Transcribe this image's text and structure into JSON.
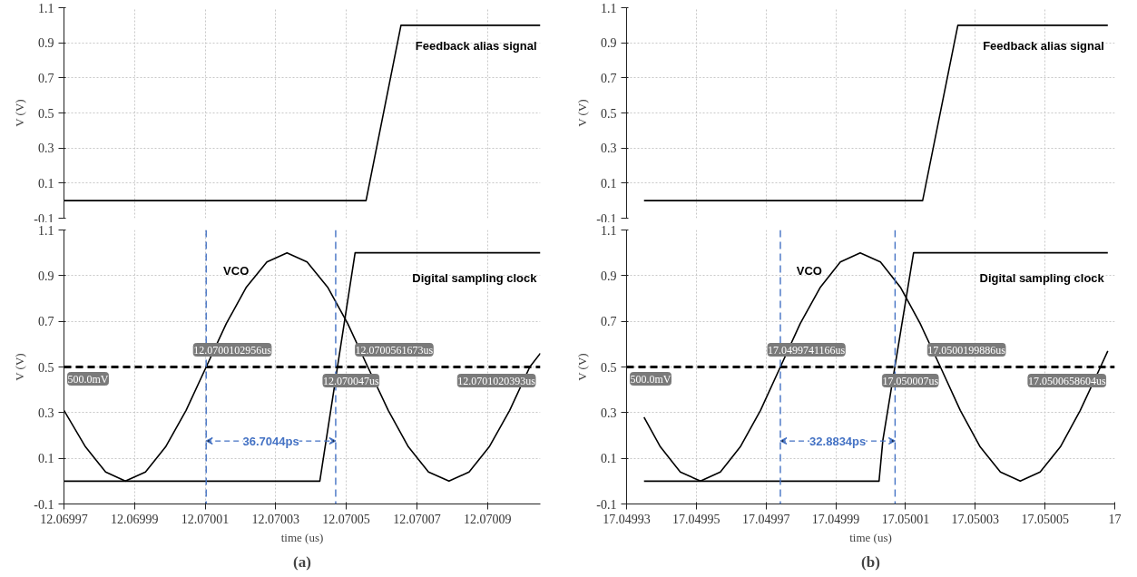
{
  "chart_data": [
    {
      "type": "line",
      "ylabel": "V (V)",
      "xlim": [
        12.06997,
        12.070105
      ],
      "ylim": [
        -0.1,
        1.1
      ],
      "yticks": [
        -0.1,
        0.1,
        0.3,
        0.5,
        0.7,
        0.9,
        1.1
      ],
      "xticks": [
        12.06997,
        12.06999,
        12.07001,
        12.07003,
        12.07005,
        12.07007,
        12.07009
      ],
      "tick_labels": "y",
      "grid": true,
      "marker": "none",
      "line_style": "solid",
      "series": [
        {
          "name": "Feedback alias signal",
          "color": "#000000",
          "x": [
            12.06997,
            12.0700556,
            12.0700655,
            12.070105
          ],
          "values": [
            0,
            0,
            1.0,
            1.0
          ]
        }
      ]
    },
    {
      "type": "line",
      "ylabel": "V (V)",
      "xlim": [
        17.04993,
        17.05007
      ],
      "ylim": [
        -0.1,
        1.1
      ],
      "yticks": [
        -0.1,
        0.1,
        0.3,
        0.5,
        0.7,
        0.9,
        1.1
      ],
      "xticks": [
        17.04993,
        17.04995,
        17.04997,
        17.04999,
        17.05001,
        17.05003,
        17.05005
      ],
      "tick_labels": "y",
      "grid": true,
      "marker": "none",
      "line_style": "solid",
      "series": [
        {
          "name": "Feedback alias signal",
          "color": "#000000",
          "x": [
            17.049935,
            17.0500149,
            17.050025,
            17.050068
          ],
          "values": [
            0,
            0,
            1.0,
            1.0
          ]
        }
      ]
    },
    {
      "type": "line",
      "xlabel": "time (us)",
      "ylabel": "V (V)",
      "xlim": [
        12.06997,
        12.070105
      ],
      "ylim": [
        -0.1,
        1.1
      ],
      "yticks": [
        -0.1,
        0.1,
        0.3,
        0.5,
        0.7,
        0.9,
        1.1
      ],
      "xticks": [
        12.06997,
        12.06999,
        12.07001,
        12.07003,
        12.07005,
        12.07007,
        12.07009
      ],
      "grid": true,
      "marker": "none",
      "line_style": "solid",
      "series": [
        {
          "name": "VCO",
          "color": "#000000",
          "x": [
            12.06997,
            12.0699761,
            12.0699818,
            12.0699874,
            12.0699931,
            12.0699988,
            12.0700046,
            12.0700103,
            12.070016,
            12.0700217,
            12.0700275,
            12.0700332,
            12.0700389,
            12.0700447,
            12.0700504,
            12.0700561,
            12.0700619,
            12.0700676,
            12.0700733,
            12.0700791,
            12.0700848,
            12.0700905,
            12.0700963,
            12.070102,
            12.070105
          ],
          "values": [
            0.31,
            0.15,
            0.04,
            0,
            0.04,
            0.15,
            0.31,
            0.5,
            0.69,
            0.85,
            0.96,
            1.0,
            0.96,
            0.85,
            0.69,
            0.5,
            0.31,
            0.15,
            0.04,
            0,
            0.04,
            0.15,
            0.31,
            0.5,
            0.56
          ]
        },
        {
          "name": "Digital sampling clock",
          "color": "#000000",
          "x": [
            12.06997,
            12.0700425,
            12.0700525,
            12.070105
          ],
          "values": [
            0,
            0,
            1.0,
            1.0
          ]
        }
      ],
      "ref_lines": [
        {
          "axis": "y",
          "value": 0.5,
          "label": "500.0mV",
          "color": "#000000",
          "line_style": "dashed"
        },
        {
          "axis": "x",
          "value": 12.0700103,
          "color": "#4472c4",
          "line_style": "dashed"
        },
        {
          "axis": "x",
          "value": 12.070047,
          "color": "#4472c4",
          "line_style": "dashed"
        }
      ],
      "title": "(a)",
      "annotations": [
        "36.7044ps",
        {
          "text": "12.0700102956us",
          "x": 12.0700102956,
          "y": 0.5
        },
        {
          "text": "12.0700561673us",
          "x": 12.0700561673,
          "y": 0.5
        },
        {
          "text": "12.0701020393us",
          "x": 12.0701020393,
          "y": 0.5
        },
        {
          "text": "12.070047us",
          "x": 12.070047,
          "y": 0.5
        }
      ]
    },
    {
      "type": "line",
      "xlabel": "time (us)",
      "ylabel": "V (V)",
      "xlim": [
        17.04993,
        17.05007
      ],
      "ylim": [
        -0.1,
        1.1
      ],
      "yticks": [
        -0.1,
        0.1,
        0.3,
        0.5,
        0.7,
        0.9,
        1.1
      ],
      "xticks": [
        17.04993,
        17.04995,
        17.04997,
        17.04999,
        17.05001,
        17.05003,
        17.05005,
        {
          "value": 17.05007,
          "label": "17"
        }
      ],
      "grid": true,
      "marker": "none",
      "line_style": "solid",
      "series": [
        {
          "name": "VCO",
          "color": "#000000",
          "x": [
            17.049935,
            17.0499397,
            17.0499454,
            17.0499512,
            17.0499569,
            17.0499626,
            17.0499684,
            17.0499741,
            17.0499798,
            17.0499856,
            17.0499913,
            17.049997,
            17.0500028,
            17.0500085,
            17.0500142,
            17.05002,
            17.0500257,
            17.0500314,
            17.0500372,
            17.0500429,
            17.0500486,
            17.0500544,
            17.0500601,
            17.0500659,
            17.050068
          ],
          "values": [
            0.28,
            0.15,
            0.04,
            0,
            0.04,
            0.15,
            0.31,
            0.5,
            0.69,
            0.85,
            0.96,
            1.0,
            0.96,
            0.85,
            0.69,
            0.5,
            0.31,
            0.15,
            0.04,
            0,
            0.04,
            0.15,
            0.31,
            0.5,
            0.57
          ]
        },
        {
          "name": "Digital sampling clock",
          "color": "#000000",
          "x": [
            17.049935,
            17.0500024,
            17.0500035,
            17.0500123,
            17.050068
          ],
          "values": [
            0,
            0,
            0.18,
            1.0,
            1.0
          ]
        }
      ],
      "ref_lines": [
        {
          "axis": "y",
          "value": 0.5,
          "label": "500.0mV",
          "color": "#000000",
          "line_style": "dashed"
        },
        {
          "axis": "x",
          "value": 17.0499741,
          "color": "#4472c4",
          "line_style": "dashed"
        },
        {
          "axis": "x",
          "value": 17.050007,
          "color": "#4472c4",
          "line_style": "dashed"
        }
      ],
      "title": "(b)",
      "annotations": [
        "32.8834ps",
        {
          "text": "17.0499741166us",
          "x": 17.0499741166,
          "y": 0.5
        },
        {
          "text": "17.0500199886us",
          "x": 17.0500199886,
          "y": 0.5
        },
        {
          "text": "17.0500658604us",
          "x": 17.0500658604,
          "y": 0.5
        },
        {
          "text": "17.050007us",
          "x": 17.050007,
          "y": 0.5
        }
      ]
    }
  ]
}
